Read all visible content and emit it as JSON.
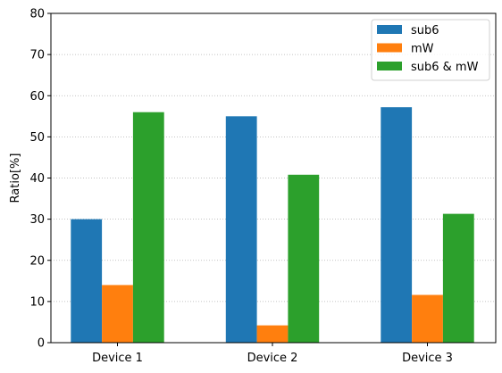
{
  "chart_data": {
    "type": "bar",
    "categories": [
      "Device 1",
      "Device 2",
      "Device 3"
    ],
    "series": [
      {
        "name": "sub6",
        "values": [
          30,
          55,
          57.2
        ],
        "color": "#1f77b4"
      },
      {
        "name": "mW",
        "values": [
          14,
          4.2,
          11.6
        ],
        "color": "#ff7f0e"
      },
      {
        "name": "sub6 & mW",
        "values": [
          56,
          40.8,
          31.3
        ],
        "color": "#2ca02c"
      }
    ],
    "xlabel": "",
    "ylabel": "Ratio[%]",
    "ylim": [
      0,
      80
    ],
    "yticks": [
      "0",
      "10",
      "20",
      "30",
      "40",
      "50",
      "60",
      "70",
      "80"
    ],
    "grid": "y-dotted",
    "legend": "top-right"
  }
}
